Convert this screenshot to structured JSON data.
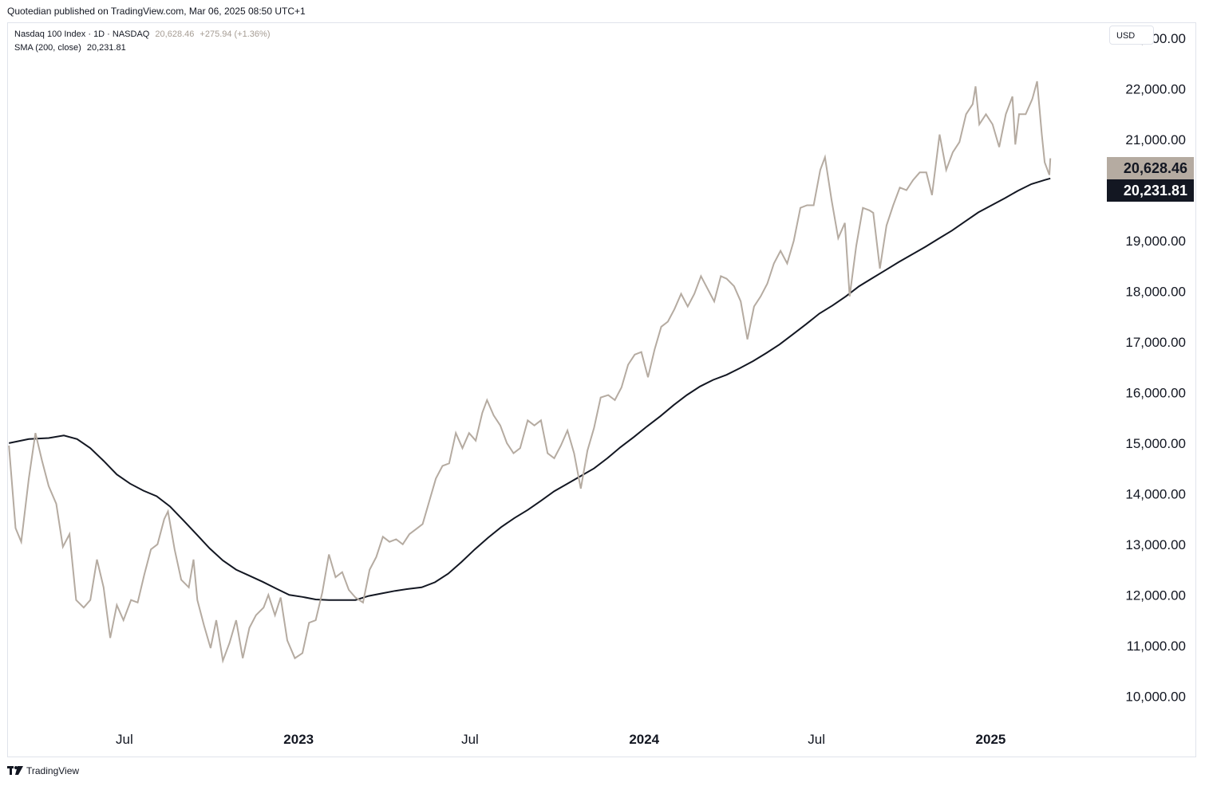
{
  "header": {
    "published": "Quotedian published on TradingView.com, Mar 06, 2025 08:50 UTC+1"
  },
  "legend": {
    "symbol": "Nasdaq 100 Index · 1D · NASDAQ",
    "price": "20,628.46",
    "change": "+275.94 (+1.36%)",
    "sma_label": "SMA (200, close)",
    "sma_value": "20,231.81"
  },
  "currency": "USD",
  "price_tags": {
    "last": "20,628.46",
    "sma": "20,231.81"
  },
  "footer": {
    "brand": "TradingView"
  },
  "colors": {
    "price_line": "#b5aba1",
    "sma_line": "#131722",
    "last_tag": "#b5aba1",
    "sma_tag": "#131722"
  },
  "chart_data": {
    "type": "line",
    "ylim": [
      9500,
      23300
    ],
    "x_range": [
      "2022-02-28",
      "2025-05-02"
    ],
    "y_ticks": [
      "10,000.00",
      "11,000.00",
      "12,000.00",
      "13,000.00",
      "14,000.00",
      "15,000.00",
      "16,000.00",
      "17,000.00",
      "18,000.00",
      "19,000.00",
      "20,000.00",
      "21,000.00",
      "22,000.00",
      "23,000.00"
    ],
    "y_tick_values": [
      10000,
      11000,
      12000,
      13000,
      14000,
      15000,
      16000,
      17000,
      18000,
      19000,
      20000,
      21000,
      22000,
      23000
    ],
    "x_ticks": [
      {
        "label": "Jul",
        "date": "2022-07-01",
        "bold": false
      },
      {
        "label": "2023",
        "date": "2023-01-01",
        "bold": true
      },
      {
        "label": "Jul",
        "date": "2023-07-01",
        "bold": false
      },
      {
        "label": "2024",
        "date": "2024-01-01",
        "bold": true
      },
      {
        "label": "Jul",
        "date": "2024-07-01",
        "bold": false
      },
      {
        "label": "2025",
        "date": "2025-01-01",
        "bold": true
      }
    ],
    "series": [
      {
        "name": "Nasdaq 100 Index",
        "points": [
          [
            "2022-03-01",
            14950
          ],
          [
            "2022-03-08",
            13320
          ],
          [
            "2022-03-14",
            13050
          ],
          [
            "2022-03-22",
            14300
          ],
          [
            "2022-03-29",
            15200
          ],
          [
            "2022-04-05",
            14650
          ],
          [
            "2022-04-12",
            14150
          ],
          [
            "2022-04-20",
            13800
          ],
          [
            "2022-04-27",
            12950
          ],
          [
            "2022-05-04",
            13200
          ],
          [
            "2022-05-11",
            11900
          ],
          [
            "2022-05-19",
            11750
          ],
          [
            "2022-05-26",
            11900
          ],
          [
            "2022-06-02",
            12700
          ],
          [
            "2022-06-09",
            12150
          ],
          [
            "2022-06-16",
            11150
          ],
          [
            "2022-06-23",
            11800
          ],
          [
            "2022-06-30",
            11500
          ],
          [
            "2022-07-08",
            11900
          ],
          [
            "2022-07-15",
            11850
          ],
          [
            "2022-07-22",
            12400
          ],
          [
            "2022-07-29",
            12900
          ],
          [
            "2022-08-05",
            13000
          ],
          [
            "2022-08-12",
            13500
          ],
          [
            "2022-08-16",
            13650
          ],
          [
            "2022-08-23",
            12900
          ],
          [
            "2022-08-30",
            12300
          ],
          [
            "2022-09-07",
            12150
          ],
          [
            "2022-09-12",
            12700
          ],
          [
            "2022-09-16",
            11900
          ],
          [
            "2022-09-23",
            11400
          ],
          [
            "2022-09-30",
            10950
          ],
          [
            "2022-10-06",
            11500
          ],
          [
            "2022-10-13",
            10700
          ],
          [
            "2022-10-20",
            11050
          ],
          [
            "2022-10-27",
            11500
          ],
          [
            "2022-11-03",
            10750
          ],
          [
            "2022-11-10",
            11350
          ],
          [
            "2022-11-17",
            11600
          ],
          [
            "2022-11-25",
            11750
          ],
          [
            "2022-11-30",
            12000
          ],
          [
            "2022-12-07",
            11600
          ],
          [
            "2022-12-13",
            11950
          ],
          [
            "2022-12-20",
            11100
          ],
          [
            "2022-12-28",
            10750
          ],
          [
            "2023-01-05",
            10850
          ],
          [
            "2023-01-12",
            11450
          ],
          [
            "2023-01-19",
            11500
          ],
          [
            "2023-01-26",
            12050
          ],
          [
            "2023-02-02",
            12800
          ],
          [
            "2023-02-09",
            12350
          ],
          [
            "2023-02-16",
            12450
          ],
          [
            "2023-02-23",
            12100
          ],
          [
            "2023-03-02",
            11950
          ],
          [
            "2023-03-10",
            11850
          ],
          [
            "2023-03-17",
            12500
          ],
          [
            "2023-03-24",
            12750
          ],
          [
            "2023-03-31",
            13150
          ],
          [
            "2023-04-07",
            13050
          ],
          [
            "2023-04-14",
            13100
          ],
          [
            "2023-04-21",
            13000
          ],
          [
            "2023-04-28",
            13200
          ],
          [
            "2023-05-05",
            13300
          ],
          [
            "2023-05-12",
            13400
          ],
          [
            "2023-05-19",
            13850
          ],
          [
            "2023-05-26",
            14300
          ],
          [
            "2023-06-02",
            14550
          ],
          [
            "2023-06-09",
            14600
          ],
          [
            "2023-06-16",
            15200
          ],
          [
            "2023-06-23",
            14900
          ],
          [
            "2023-06-30",
            15200
          ],
          [
            "2023-07-07",
            15050
          ],
          [
            "2023-07-14",
            15600
          ],
          [
            "2023-07-19",
            15850
          ],
          [
            "2023-07-26",
            15550
          ],
          [
            "2023-08-02",
            15350
          ],
          [
            "2023-08-09",
            15000
          ],
          [
            "2023-08-16",
            14800
          ],
          [
            "2023-08-23",
            14900
          ],
          [
            "2023-08-31",
            15450
          ],
          [
            "2023-09-07",
            15350
          ],
          [
            "2023-09-14",
            15450
          ],
          [
            "2023-09-21",
            14800
          ],
          [
            "2023-09-28",
            14700
          ],
          [
            "2023-10-05",
            14950
          ],
          [
            "2023-10-12",
            15250
          ],
          [
            "2023-10-19",
            14800
          ],
          [
            "2023-10-26",
            14100
          ],
          [
            "2023-11-02",
            14850
          ],
          [
            "2023-11-09",
            15300
          ],
          [
            "2023-11-16",
            15900
          ],
          [
            "2023-11-24",
            15950
          ],
          [
            "2023-12-01",
            15850
          ],
          [
            "2023-12-08",
            16100
          ],
          [
            "2023-12-15",
            16550
          ],
          [
            "2023-12-22",
            16750
          ],
          [
            "2023-12-29",
            16800
          ],
          [
            "2024-01-05",
            16300
          ],
          [
            "2024-01-12",
            16850
          ],
          [
            "2024-01-19",
            17300
          ],
          [
            "2024-01-26",
            17400
          ],
          [
            "2024-02-02",
            17650
          ],
          [
            "2024-02-09",
            17950
          ],
          [
            "2024-02-16",
            17700
          ],
          [
            "2024-02-23",
            17950
          ],
          [
            "2024-03-01",
            18300
          ],
          [
            "2024-03-08",
            18050
          ],
          [
            "2024-03-15",
            17800
          ],
          [
            "2024-03-22",
            18300
          ],
          [
            "2024-03-28",
            18250
          ],
          [
            "2024-04-05",
            18100
          ],
          [
            "2024-04-12",
            17800
          ],
          [
            "2024-04-19",
            17050
          ],
          [
            "2024-04-26",
            17700
          ],
          [
            "2024-05-03",
            17900
          ],
          [
            "2024-05-10",
            18150
          ],
          [
            "2024-05-17",
            18550
          ],
          [
            "2024-05-24",
            18800
          ],
          [
            "2024-05-31",
            18550
          ],
          [
            "2024-06-07",
            19000
          ],
          [
            "2024-06-14",
            19650
          ],
          [
            "2024-06-21",
            19700
          ],
          [
            "2024-06-28",
            19700
          ],
          [
            "2024-07-05",
            20400
          ],
          [
            "2024-07-10",
            20650
          ],
          [
            "2024-07-17",
            19800
          ],
          [
            "2024-07-24",
            19050
          ],
          [
            "2024-07-31",
            19350
          ],
          [
            "2024-08-05",
            17900
          ],
          [
            "2024-08-12",
            18900
          ],
          [
            "2024-08-19",
            19650
          ],
          [
            "2024-08-26",
            19600
          ],
          [
            "2024-08-30",
            19550
          ],
          [
            "2024-09-06",
            18450
          ],
          [
            "2024-09-13",
            19300
          ],
          [
            "2024-09-20",
            19700
          ],
          [
            "2024-09-27",
            20050
          ],
          [
            "2024-10-04",
            20000
          ],
          [
            "2024-10-11",
            20200
          ],
          [
            "2024-10-18",
            20350
          ],
          [
            "2024-10-25",
            20350
          ],
          [
            "2024-10-31",
            19900
          ],
          [
            "2024-11-08",
            21100
          ],
          [
            "2024-11-15",
            20400
          ],
          [
            "2024-11-22",
            20750
          ],
          [
            "2024-11-29",
            20950
          ],
          [
            "2024-12-06",
            21500
          ],
          [
            "2024-12-13",
            21700
          ],
          [
            "2024-12-16",
            22050
          ],
          [
            "2024-12-20",
            21300
          ],
          [
            "2024-12-27",
            21500
          ],
          [
            "2025-01-03",
            21300
          ],
          [
            "2025-01-10",
            20850
          ],
          [
            "2025-01-17",
            21500
          ],
          [
            "2025-01-24",
            21850
          ],
          [
            "2025-01-27",
            20900
          ],
          [
            "2025-01-31",
            21500
          ],
          [
            "2025-02-07",
            21500
          ],
          [
            "2025-02-14",
            21800
          ],
          [
            "2025-02-19",
            22150
          ],
          [
            "2025-02-24",
            21100
          ],
          [
            "2025-02-27",
            20550
          ],
          [
            "2025-03-03",
            20350
          ],
          [
            "2025-03-04",
            20300
          ],
          [
            "2025-03-05",
            20628
          ]
        ]
      },
      {
        "name": "SMA (200, close)",
        "points": [
          [
            "2022-03-01",
            15000
          ],
          [
            "2022-03-22",
            15080
          ],
          [
            "2022-04-12",
            15100
          ],
          [
            "2022-04-28",
            15150
          ],
          [
            "2022-05-12",
            15080
          ],
          [
            "2022-05-26",
            14900
          ],
          [
            "2022-06-09",
            14650
          ],
          [
            "2022-06-23",
            14380
          ],
          [
            "2022-07-07",
            14200
          ],
          [
            "2022-07-21",
            14060
          ],
          [
            "2022-08-04",
            13950
          ],
          [
            "2022-08-18",
            13750
          ],
          [
            "2022-09-01",
            13480
          ],
          [
            "2022-09-15",
            13200
          ],
          [
            "2022-09-29",
            12920
          ],
          [
            "2022-10-13",
            12680
          ],
          [
            "2022-10-27",
            12500
          ],
          [
            "2022-11-10",
            12380
          ],
          [
            "2022-11-24",
            12260
          ],
          [
            "2022-12-08",
            12130
          ],
          [
            "2022-12-22",
            12000
          ],
          [
            "2023-01-05",
            11960
          ],
          [
            "2023-01-19",
            11910
          ],
          [
            "2023-02-02",
            11900
          ],
          [
            "2023-02-16",
            11900
          ],
          [
            "2023-03-02",
            11900
          ],
          [
            "2023-03-16",
            11980
          ],
          [
            "2023-03-30",
            12030
          ],
          [
            "2023-04-13",
            12080
          ],
          [
            "2023-04-27",
            12120
          ],
          [
            "2023-05-11",
            12150
          ],
          [
            "2023-05-25",
            12250
          ],
          [
            "2023-06-08",
            12420
          ],
          [
            "2023-06-22",
            12650
          ],
          [
            "2023-07-06",
            12900
          ],
          [
            "2023-07-20",
            13130
          ],
          [
            "2023-08-03",
            13340
          ],
          [
            "2023-08-17",
            13520
          ],
          [
            "2023-08-31",
            13680
          ],
          [
            "2023-09-14",
            13860
          ],
          [
            "2023-09-28",
            14050
          ],
          [
            "2023-10-12",
            14200
          ],
          [
            "2023-10-26",
            14350
          ],
          [
            "2023-11-09",
            14500
          ],
          [
            "2023-11-23",
            14700
          ],
          [
            "2023-12-07",
            14920
          ],
          [
            "2023-12-21",
            15120
          ],
          [
            "2024-01-04",
            15330
          ],
          [
            "2024-01-18",
            15530
          ],
          [
            "2024-02-01",
            15750
          ],
          [
            "2024-02-15",
            15950
          ],
          [
            "2024-02-29",
            16120
          ],
          [
            "2024-03-14",
            16250
          ],
          [
            "2024-03-28",
            16350
          ],
          [
            "2024-04-11",
            16480
          ],
          [
            "2024-04-25",
            16620
          ],
          [
            "2024-05-09",
            16780
          ],
          [
            "2024-05-23",
            16950
          ],
          [
            "2024-06-06",
            17150
          ],
          [
            "2024-06-20",
            17350
          ],
          [
            "2024-07-04",
            17560
          ],
          [
            "2024-07-18",
            17720
          ],
          [
            "2024-08-01",
            17900
          ],
          [
            "2024-08-15",
            18100
          ],
          [
            "2024-08-29",
            18260
          ],
          [
            "2024-09-12",
            18420
          ],
          [
            "2024-09-26",
            18580
          ],
          [
            "2024-10-10",
            18730
          ],
          [
            "2024-10-24",
            18880
          ],
          [
            "2024-11-07",
            19040
          ],
          [
            "2024-11-21",
            19200
          ],
          [
            "2024-12-05",
            19380
          ],
          [
            "2024-12-19",
            19560
          ],
          [
            "2025-01-02",
            19700
          ],
          [
            "2025-01-16",
            19840
          ],
          [
            "2025-01-30",
            19990
          ],
          [
            "2025-02-13",
            20120
          ],
          [
            "2025-02-27",
            20200
          ],
          [
            "2025-03-05",
            20232
          ]
        ]
      }
    ]
  }
}
